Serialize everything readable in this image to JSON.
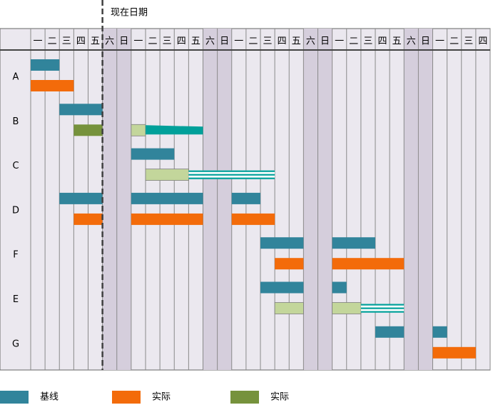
{
  "chart_data": {
    "type": "gantt",
    "today_label": "现在日期",
    "today": 5,
    "days": [
      "一",
      "二",
      "三",
      "四",
      "五",
      "六",
      "日",
      "一",
      "二",
      "三",
      "四",
      "五",
      "六",
      "日",
      "一",
      "二",
      "三",
      "四",
      "五",
      "六",
      "日",
      "一",
      "二",
      "三",
      "四",
      "五",
      "六",
      "日",
      "一",
      "二",
      "三",
      "四"
    ],
    "weekend": [
      5,
      6,
      12,
      13,
      19,
      20,
      26,
      27
    ],
    "background_color": "#ebe8ef",
    "weekend_color": "#d5cedc",
    "styles": {
      "baseline": "#31849b",
      "actual": "#f36b0a",
      "done": "#76923c",
      "pending": "#c3d69b",
      "tail": "#00a09a",
      "striped": "#00a09a"
    },
    "rows": [
      {
        "label": "A",
        "bars": [
          {
            "style": "baseline",
            "start": 0,
            "end": 2
          },
          {
            "style": "actual",
            "start": 0,
            "end": 3
          }
        ]
      },
      {
        "label": "B",
        "bars": [
          {
            "style": "baseline",
            "start": 2,
            "end": 5
          },
          {
            "style": "done",
            "start": 3,
            "end": 5
          },
          {
            "style": "pending",
            "start": 7,
            "end": 8
          },
          {
            "style": "tail",
            "start": 8,
            "end": 12
          }
        ]
      },
      {
        "label": "C",
        "bars": [
          {
            "style": "baseline",
            "start": 7,
            "end": 10
          },
          {
            "style": "pending",
            "start": 8,
            "end": 11
          },
          {
            "style": "striped",
            "start": 11,
            "end": 17
          }
        ]
      },
      {
        "label": "D",
        "bars": [
          {
            "style": "baseline",
            "start": 2,
            "end": 5
          },
          {
            "style": "baseline",
            "start": 7,
            "end": 12
          },
          {
            "style": "baseline",
            "start": 14,
            "end": 16
          },
          {
            "style": "actual",
            "start": 3,
            "end": 5
          },
          {
            "style": "actual",
            "start": 7,
            "end": 12
          },
          {
            "style": "actual",
            "start": 14,
            "end": 17
          }
        ]
      },
      {
        "label": "F",
        "bars": [
          {
            "style": "baseline",
            "start": 16,
            "end": 19
          },
          {
            "style": "baseline",
            "start": 21,
            "end": 24
          },
          {
            "style": "actual",
            "start": 17,
            "end": 19
          },
          {
            "style": "actual",
            "start": 21,
            "end": 26
          }
        ]
      },
      {
        "label": "E",
        "bars": [
          {
            "style": "baseline",
            "start": 16,
            "end": 19
          },
          {
            "style": "baseline",
            "start": 21,
            "end": 22
          },
          {
            "style": "pending",
            "start": 17,
            "end": 19
          },
          {
            "style": "pending",
            "start": 21,
            "end": 23
          },
          {
            "style": "striped",
            "start": 23,
            "end": 26
          }
        ]
      },
      {
        "label": "G",
        "bars": [
          {
            "style": "baseline",
            "start": 24,
            "end": 26
          },
          {
            "style": "baseline",
            "start": 28,
            "end": 29
          },
          {
            "style": "actual",
            "start": 28,
            "end": 31
          }
        ]
      }
    ],
    "legend": [
      {
        "name": "基线",
        "color": "#31849b"
      },
      {
        "name": "实际",
        "color": "#f36b0a"
      },
      {
        "name": "实际",
        "color": "#76923c"
      }
    ]
  }
}
